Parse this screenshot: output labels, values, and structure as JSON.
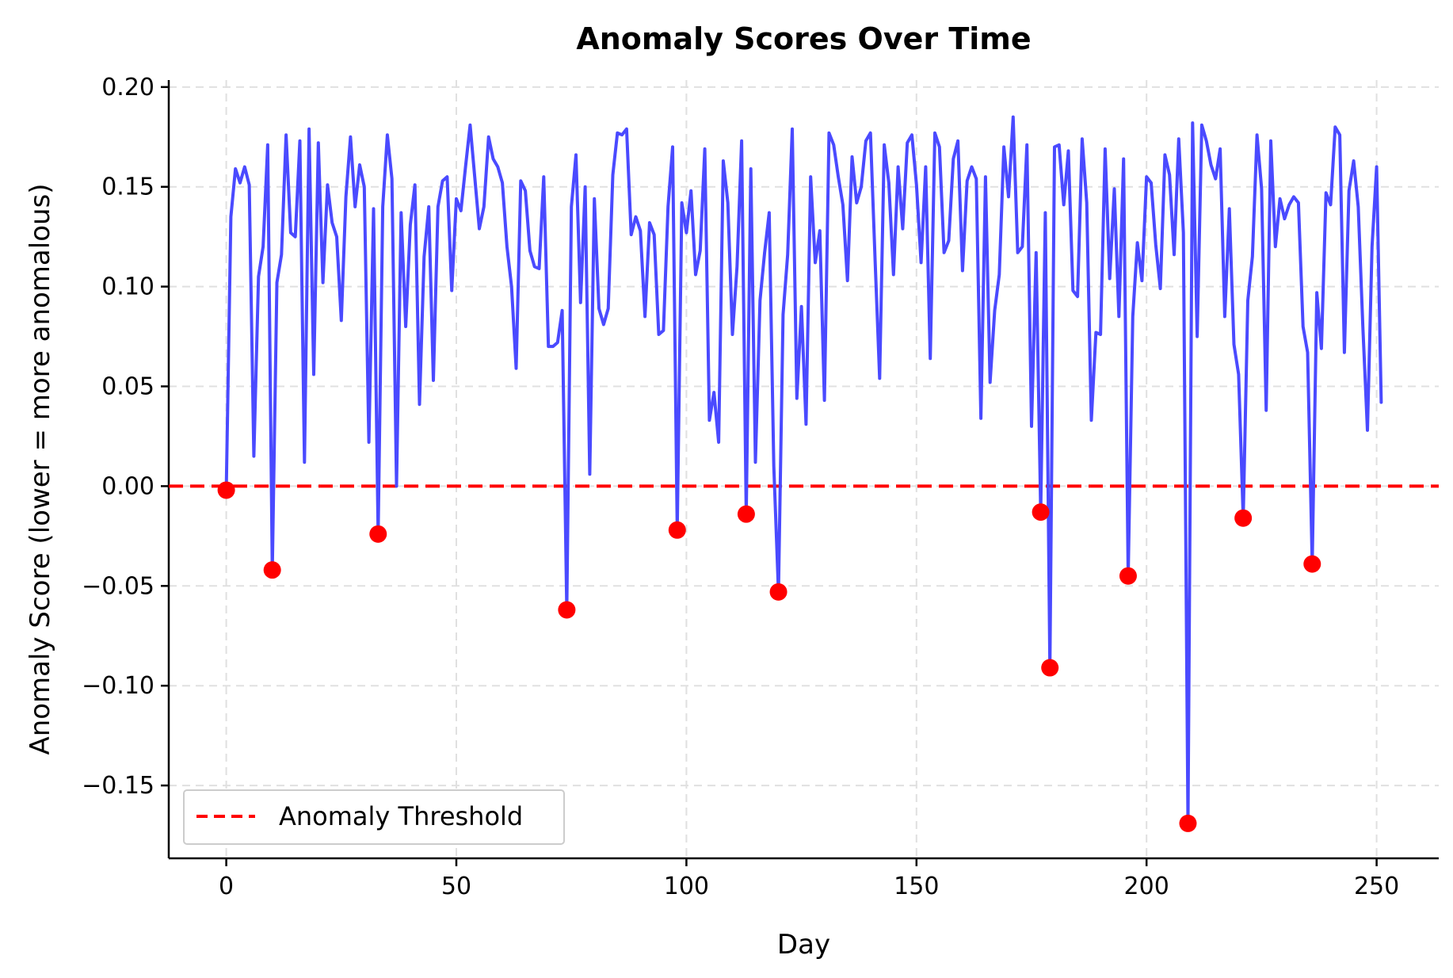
{
  "chart_data": {
    "type": "line",
    "title": "Anomaly Scores Over Time",
    "xlabel": "Day",
    "ylabel": "Anomaly Score (lower = more anomalous)",
    "xlim": [
      -12.5,
      263.5
    ],
    "ylim": [
      -0.1865,
      0.2035
    ],
    "xticks": [
      0,
      50,
      100,
      150,
      200,
      250
    ],
    "xtick_labels": [
      "0",
      "50",
      "100",
      "150",
      "200",
      "250"
    ],
    "yticks": [
      0.2,
      0.15,
      0.1,
      0.05,
      0.0,
      -0.05,
      -0.1,
      -0.15
    ],
    "ytick_labels": [
      "0.20",
      "0.15",
      "0.10",
      "0.05",
      "0.00",
      "−0.05",
      "−0.10",
      "−0.15"
    ],
    "grid": true,
    "legend_position": "lower-left",
    "colors": {
      "series": "#4a4aff",
      "threshold": "#ff0000",
      "anomaly": "#ff0000",
      "grid": "#e0e0e0"
    },
    "series": [
      {
        "name": "",
        "color": "#4a4aff",
        "x": [
          0,
          1,
          2,
          3,
          4,
          5,
          6,
          7,
          8,
          9,
          10,
          11,
          12,
          13,
          14,
          15,
          16,
          17,
          18,
          19,
          20,
          21,
          22,
          23,
          24,
          25,
          26,
          27,
          28,
          29,
          30,
          31,
          32,
          33,
          34,
          35,
          36,
          37,
          38,
          39,
          40,
          41,
          42,
          43,
          44,
          45,
          46,
          47,
          48,
          49,
          50,
          51,
          52,
          53,
          54,
          55,
          56,
          57,
          58,
          59,
          60,
          61,
          62,
          63,
          64,
          65,
          66,
          67,
          68,
          69,
          70,
          71,
          72,
          73,
          74,
          75,
          76,
          77,
          78,
          79,
          80,
          81,
          82,
          83,
          84,
          85,
          86,
          87,
          88,
          89,
          90,
          91,
          92,
          93,
          94,
          95,
          96,
          97,
          98,
          99,
          100,
          101,
          102,
          103,
          104,
          105,
          106,
          107,
          108,
          109,
          110,
          111,
          112,
          113,
          114,
          115,
          116,
          117,
          118,
          119,
          120,
          121,
          122,
          123,
          124,
          125,
          126,
          127,
          128,
          129,
          130,
          131,
          132,
          133,
          134,
          135,
          136,
          137,
          138,
          139,
          140,
          141,
          142,
          143,
          144,
          145,
          146,
          147,
          148,
          149,
          150,
          151,
          152,
          153,
          154,
          155,
          156,
          157,
          158,
          159,
          160,
          161,
          162,
          163,
          164,
          165,
          166,
          167,
          168,
          169,
          170,
          171,
          172,
          173,
          174,
          175,
          176,
          177,
          178,
          179,
          180,
          181,
          182,
          183,
          184,
          185,
          186,
          187,
          188,
          189,
          190,
          191,
          192,
          193,
          194,
          195,
          196,
          197,
          198,
          199,
          200,
          201,
          202,
          203,
          204,
          205,
          206,
          207,
          208,
          209,
          210,
          211,
          212,
          213,
          214,
          215,
          216,
          217,
          218,
          219,
          220,
          221,
          222,
          223,
          224,
          225,
          226,
          227,
          228,
          229,
          230,
          231,
          232,
          233,
          234,
          235,
          236,
          237,
          238,
          239,
          240,
          241,
          242,
          243,
          244,
          245,
          246,
          247,
          248,
          249,
          250,
          251
        ],
        "y": [
          -0.002,
          0.135,
          0.159,
          0.152,
          0.16,
          0.151,
          0.015,
          0.105,
          0.12,
          0.171,
          -0.042,
          0.102,
          0.116,
          0.176,
          0.127,
          0.125,
          0.173,
          0.012,
          0.179,
          0.056,
          0.172,
          0.102,
          0.151,
          0.132,
          0.125,
          0.083,
          0.145,
          0.175,
          0.14,
          0.161,
          0.15,
          0.022,
          0.139,
          -0.024,
          0.14,
          0.176,
          0.154,
          0.0,
          0.137,
          0.08,
          0.131,
          0.151,
          0.041,
          0.115,
          0.14,
          0.053,
          0.14,
          0.153,
          0.155,
          0.098,
          0.144,
          0.138,
          0.16,
          0.181,
          0.155,
          0.129,
          0.14,
          0.175,
          0.164,
          0.16,
          0.152,
          0.12,
          0.1,
          0.059,
          0.153,
          0.148,
          0.118,
          0.11,
          0.109,
          0.155,
          0.07,
          0.07,
          0.072,
          0.088,
          -0.062,
          0.14,
          0.166,
          0.092,
          0.15,
          0.006,
          0.144,
          0.089,
          0.081,
          0.089,
          0.156,
          0.177,
          0.176,
          0.179,
          0.126,
          0.135,
          0.128,
          0.085,
          0.132,
          0.126,
          0.076,
          0.078,
          0.14,
          0.17,
          -0.022,
          0.142,
          0.127,
          0.148,
          0.106,
          0.118,
          0.169,
          0.033,
          0.047,
          0.022,
          0.163,
          0.142,
          0.076,
          0.11,
          0.173,
          -0.014,
          0.159,
          0.012,
          0.093,
          0.117,
          0.137,
          0.01,
          -0.053,
          0.086,
          0.116,
          0.179,
          0.044,
          0.09,
          0.031,
          0.155,
          0.112,
          0.128,
          0.043,
          0.177,
          0.171,
          0.155,
          0.141,
          0.103,
          0.165,
          0.142,
          0.15,
          0.173,
          0.177,
          0.114,
          0.054,
          0.171,
          0.152,
          0.106,
          0.16,
          0.129,
          0.172,
          0.176,
          0.151,
          0.112,
          0.16,
          0.064,
          0.177,
          0.17,
          0.117,
          0.123,
          0.164,
          0.173,
          0.108,
          0.153,
          0.16,
          0.154,
          0.034,
          0.155,
          0.052,
          0.088,
          0.106,
          0.17,
          0.145,
          0.185,
          0.117,
          0.12,
          0.171,
          0.03,
          0.117,
          -0.013,
          0.137,
          -0.091,
          0.17,
          0.171,
          0.141,
          0.168,
          0.098,
          0.095,
          0.174,
          0.142,
          0.033,
          0.077,
          0.076,
          0.169,
          0.104,
          0.149,
          0.085,
          0.164,
          -0.045,
          0.085,
          0.122,
          0.103,
          0.155,
          0.152,
          0.121,
          0.099,
          0.166,
          0.156,
          0.116,
          0.174,
          0.127,
          -0.169,
          0.182,
          0.075,
          0.181,
          0.173,
          0.161,
          0.154,
          0.169,
          0.085,
          0.139,
          0.071,
          0.056,
          -0.016,
          0.093,
          0.115,
          0.176,
          0.149,
          0.038,
          0.173,
          0.12,
          0.144,
          0.134,
          0.141,
          0.145,
          0.142,
          0.08,
          0.067,
          -0.039,
          0.097,
          0.069,
          0.147,
          0.141,
          0.18,
          0.176,
          0.067,
          0.148,
          0.163,
          0.14,
          0.08,
          0.028,
          0.12,
          0.16,
          0.042
        ]
      }
    ],
    "threshold": {
      "label": "Anomaly Threshold",
      "y": 0.0,
      "color": "#ff0000",
      "style": "dashed"
    },
    "anomalies": {
      "color": "#ff0000",
      "x": [
        0,
        10,
        33,
        74,
        98,
        113,
        120,
        177,
        179,
        196,
        209,
        221,
        236
      ],
      "y": [
        -0.002,
        -0.042,
        -0.024,
        -0.062,
        -0.022,
        -0.014,
        -0.053,
        -0.013,
        -0.091,
        -0.045,
        -0.169,
        -0.016,
        -0.039
      ]
    },
    "legend": [
      {
        "label": "Anomaly Threshold",
        "color": "#ff0000",
        "style": "dashed"
      }
    ]
  }
}
